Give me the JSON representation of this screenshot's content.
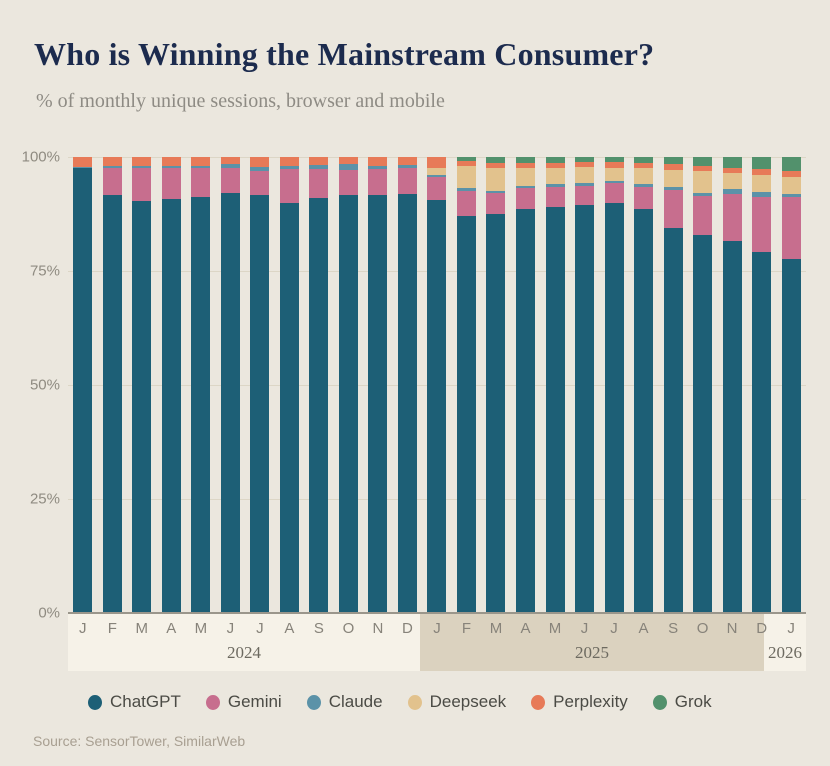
{
  "title": "Who is Winning the Mainstream Consumer?",
  "subtitle": "% of monthly unique sessions, browser and mobile",
  "source": "Source: SensorTower, SimilarWeb",
  "colors": {
    "background": "#ebe7de",
    "title": "#1c2b4e",
    "subtitle": "#8e8b84",
    "axis_line": "#9a968b",
    "gridline": "#dcd6c6",
    "band_2024": "#f6f2e8",
    "band_2025": "#dbd2bf",
    "band_2026": "#f6f2e8",
    "legend_text": "#4b4b45",
    "source_text": "#a89f91"
  },
  "chart_data": {
    "type": "bar",
    "stacked": true,
    "unit": "percent",
    "ylim": [
      0,
      100
    ],
    "grid": "horizontal-faint",
    "legend_position": "bottom",
    "y_ticks": [
      "100%",
      "75%",
      "50%",
      "25%",
      "0%"
    ],
    "categories": [
      "J",
      "F",
      "M",
      "A",
      "M",
      "J",
      "J",
      "A",
      "S",
      "O",
      "N",
      "D",
      "J",
      "F",
      "M",
      "A",
      "M",
      "J",
      "J",
      "A",
      "S",
      "O",
      "N",
      "D",
      "J"
    ],
    "year_groups": [
      {
        "label": "2024",
        "months": 12
      },
      {
        "label": "2025",
        "months": 12
      },
      {
        "label": "2026",
        "months": 1
      }
    ],
    "series": [
      {
        "name": "ChatGPT",
        "color": "#1d5f76",
        "values": [
          97.5,
          91.7,
          90.4,
          90.9,
          91.3,
          92.2,
          91.6,
          90.0,
          91.1,
          91.7,
          91.6,
          91.9,
          90.6,
          87.0,
          87.5,
          88.7,
          89.1,
          89.5,
          90.0,
          88.5,
          84.4,
          83.0,
          81.5,
          79.2,
          77.6
        ]
      },
      {
        "name": "Gemini",
        "color": "#c76e8e",
        "values": [
          0,
          5.9,
          7.2,
          6.7,
          6.2,
          5.4,
          5.4,
          7.3,
          6.3,
          5.4,
          5.7,
          5.7,
          5.0,
          5.6,
          4.7,
          4.4,
          4.4,
          4.1,
          4.2,
          4.9,
          8.4,
          8.5,
          10.5,
          12.1,
          13.6
        ]
      },
      {
        "name": "Claude",
        "color": "#5b92a8",
        "values": [
          0.4,
          0.5,
          0.4,
          0.5,
          0.5,
          0.8,
          0.8,
          0.8,
          0.8,
          1.3,
          0.8,
          0.7,
          0.4,
          0.7,
          0.4,
          0.6,
          0.6,
          0.6,
          0.6,
          0.6,
          0.7,
          0.7,
          0.9,
          1.0,
          0.7
        ]
      },
      {
        "name": "Deepseek",
        "color": "#e2c28d",
        "values": [
          0,
          0,
          0,
          0,
          0,
          0,
          0,
          0,
          0,
          0,
          0,
          0,
          1.6,
          4.7,
          5.0,
          3.9,
          3.6,
          3.6,
          2.9,
          3.5,
          3.6,
          4.7,
          3.7,
          3.8,
          3.8
        ]
      },
      {
        "name": "Perplexity",
        "color": "#e77a58",
        "values": [
          2.1,
          1.9,
          2.0,
          1.9,
          2.0,
          1.6,
          2.2,
          1.9,
          1.8,
          1.6,
          1.9,
          1.7,
          2.4,
          1.2,
          1.2,
          1.1,
          1.1,
          1.1,
          1.2,
          1.1,
          1.3,
          1.2,
          1.1,
          1.2,
          1.2
        ]
      },
      {
        "name": "Grok",
        "color": "#52916c",
        "values": [
          0,
          0,
          0,
          0,
          0,
          0,
          0,
          0,
          0,
          0,
          0,
          0,
          0,
          0.8,
          1.2,
          1.3,
          1.2,
          1.1,
          1.1,
          1.4,
          1.6,
          1.9,
          2.3,
          2.7,
          3.1
        ]
      }
    ]
  }
}
